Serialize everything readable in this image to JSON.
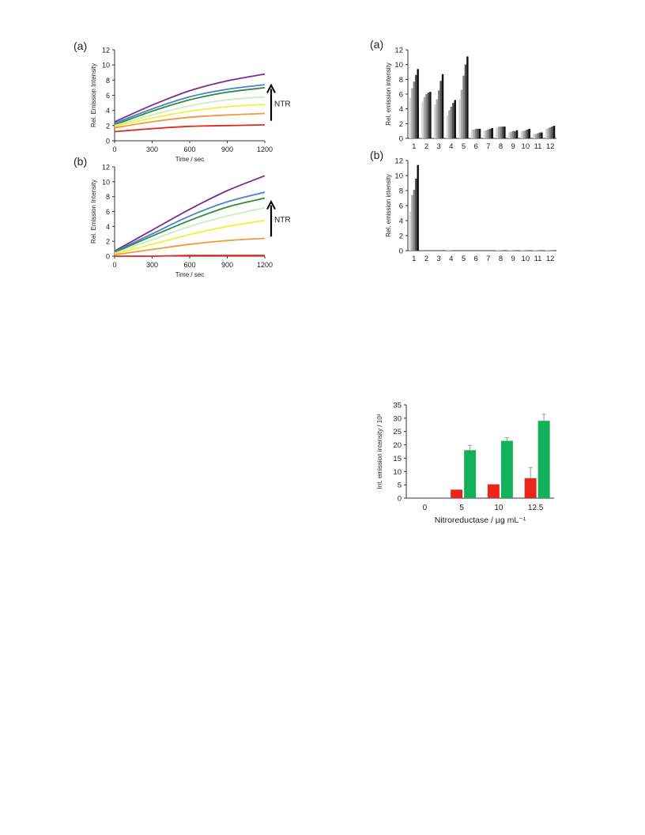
{
  "chart_data": [
    {
      "id": "left-a",
      "type": "line",
      "panel_label": "(a)",
      "xlabel": "Time / sec",
      "ylabel": "Rel. Emission Intensity",
      "xlim": [
        0,
        1200
      ],
      "ylim": [
        0,
        12
      ],
      "xticks": [
        "0",
        "300",
        "600",
        "900",
        "1200"
      ],
      "yticks": [
        "0",
        "2",
        "4",
        "6",
        "8",
        "10",
        "12"
      ],
      "annotation": "NTR",
      "x": [
        0,
        300,
        600,
        900,
        1200
      ],
      "series": [
        {
          "color": "#7b2d8e",
          "values": [
            2.5,
            4.7,
            6.6,
            7.9,
            8.8
          ]
        },
        {
          "color": "#4a7fd4",
          "values": [
            2.3,
            4.2,
            5.8,
            6.8,
            7.4
          ]
        },
        {
          "color": "#2e8b3a",
          "values": [
            2.1,
            3.9,
            5.4,
            6.4,
            7.0
          ]
        },
        {
          "color": "#c8efc0",
          "values": [
            2.0,
            3.4,
            4.6,
            5.4,
            5.8
          ]
        },
        {
          "color": "#f2f03a",
          "values": [
            1.9,
            3.0,
            3.9,
            4.5,
            4.8
          ]
        },
        {
          "color": "#f29a3a",
          "values": [
            1.7,
            2.5,
            3.1,
            3.4,
            3.6
          ]
        },
        {
          "color": "#e02b20",
          "values": [
            1.2,
            1.6,
            1.9,
            2.0,
            2.1
          ]
        }
      ]
    },
    {
      "id": "left-b",
      "type": "line",
      "panel_label": "(b)",
      "xlabel": "Time / sec",
      "ylabel": "Rel. Emission Intensity",
      "xlim": [
        0,
        1200
      ],
      "ylim": [
        0,
        12
      ],
      "xticks": [
        "0",
        "300",
        "600",
        "900",
        "1200"
      ],
      "yticks": [
        "0",
        "2",
        "4",
        "6",
        "8",
        "10",
        "12"
      ],
      "annotation": "NTR",
      "x": [
        0,
        300,
        600,
        900,
        1200
      ],
      "series": [
        {
          "color": "#7b2d8e",
          "values": [
            0.7,
            3.5,
            6.3,
            8.8,
            10.8
          ]
        },
        {
          "color": "#4a7fd4",
          "values": [
            0.6,
            3.0,
            5.4,
            7.3,
            8.6
          ]
        },
        {
          "color": "#2e8b3a",
          "values": [
            0.5,
            2.7,
            4.8,
            6.6,
            7.8
          ]
        },
        {
          "color": "#c8efc0",
          "values": [
            0.4,
            2.2,
            4.0,
            5.4,
            6.5
          ]
        },
        {
          "color": "#f2f03a",
          "values": [
            0.3,
            1.6,
            2.9,
            4.0,
            4.8
          ]
        },
        {
          "color": "#f29a3a",
          "values": [
            0.2,
            0.9,
            1.6,
            2.1,
            2.4
          ]
        },
        {
          "color": "#e02b20",
          "values": [
            0.0,
            0.0,
            0.1,
            0.1,
            0.1
          ]
        }
      ]
    },
    {
      "id": "right-a",
      "type": "bar",
      "panel_label": "(a)",
      "ylabel": "Rel. emission intensity",
      "ylim": [
        0,
        12
      ],
      "yticks": [
        "0",
        "2",
        "4",
        "6",
        "8",
        "10",
        "12"
      ],
      "categories": [
        "1",
        "2",
        "3",
        "4",
        "5",
        "6",
        "7",
        "8",
        "9",
        "10",
        "11",
        "12"
      ],
      "group_values": [
        [
          5.5,
          6.8,
          7.7,
          8.6,
          9.4
        ],
        [
          5.0,
          5.6,
          6.0,
          6.2,
          6.3
        ],
        [
          4.6,
          5.3,
          6.5,
          7.8,
          8.7
        ],
        [
          3.1,
          3.8,
          4.3,
          4.8,
          5.2
        ],
        [
          5.3,
          6.6,
          8.5,
          10.0,
          11.1
        ],
        [
          1.2,
          1.2,
          1.3,
          1.3,
          1.3
        ],
        [
          1.0,
          1.1,
          1.2,
          1.3,
          1.4
        ],
        [
          1.5,
          1.6,
          1.6,
          1.6,
          1.6
        ],
        [
          0.8,
          0.9,
          1.0,
          1.0,
          1.1
        ],
        [
          1.0,
          1.0,
          1.1,
          1.2,
          1.3
        ],
        [
          0.6,
          0.6,
          0.7,
          0.8,
          0.8
        ],
        [
          1.3,
          1.4,
          1.5,
          1.6,
          1.7
        ]
      ]
    },
    {
      "id": "right-b",
      "type": "bar",
      "panel_label": "(b)",
      "ylabel": "Rel. emission intensity",
      "ylim": [
        0,
        12
      ],
      "yticks": [
        "0",
        "2",
        "4",
        "6",
        "8",
        "10",
        "12"
      ],
      "categories": [
        "1",
        "2",
        "3",
        "4",
        "5",
        "6",
        "7",
        "8",
        "9",
        "10",
        "11",
        "12"
      ],
      "group_values": [
        [
          5.2,
          7.4,
          8.1,
          9.6,
          11.4
        ],
        [
          0.0,
          0.0,
          0.0,
          0.0,
          0.0
        ],
        [
          0.0,
          0.0,
          0.0,
          0.0,
          0.0
        ],
        [
          0.05,
          0.05,
          0.05,
          0.05,
          0.05
        ],
        [
          0.0,
          0.0,
          0.0,
          0.0,
          0.0
        ],
        [
          0.0,
          0.0,
          0.0,
          0.0,
          0.0
        ],
        [
          0.0,
          0.0,
          0.0,
          0.0,
          0.0
        ],
        [
          0.05,
          0.05,
          0.05,
          0.05,
          0.05
        ],
        [
          0.05,
          0.05,
          0.05,
          0.05,
          0.05
        ],
        [
          0.05,
          0.05,
          0.05,
          0.05,
          0.05
        ],
        [
          0.05,
          0.05,
          0.05,
          0.05,
          0.05
        ],
        [
          0.05,
          0.05,
          0.05,
          0.05,
          0.05
        ]
      ]
    },
    {
      "id": "bottom-right",
      "type": "bar",
      "xlabel": "Nitroreductase / µg mL⁻¹",
      "ylabel": "Int. emission intensity / 10³",
      "ylim": [
        0,
        35
      ],
      "yticks": [
        "0",
        "5",
        "10",
        "15",
        "20",
        "25",
        "30",
        "35"
      ],
      "categories": [
        "0",
        "5",
        "10",
        "12.5"
      ],
      "series": [
        {
          "color": "#e8261c",
          "values": [
            0,
            3.2,
            5.2,
            7.5
          ],
          "errors": [
            0,
            0,
            0,
            4.0
          ]
        },
        {
          "color": "#16b05a",
          "values": [
            0,
            18.0,
            21.5,
            29.0
          ],
          "errors": [
            0,
            1.8,
            1.2,
            2.5
          ]
        }
      ]
    }
  ]
}
